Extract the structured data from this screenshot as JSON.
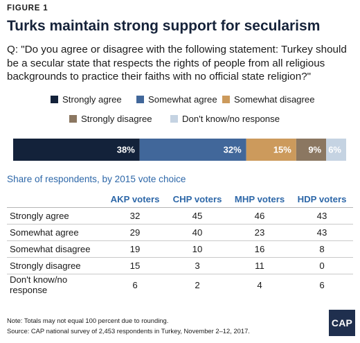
{
  "figure_label": "FIGURE 1",
  "title": "Turks maintain strong support for secularism",
  "question": "Q: \"Do you agree or disagree with the following statement: Turkey should be a secular state that respects the rights of people from all religious backgrounds to practice their faiths with no official state religion?\"",
  "chart_data": {
    "type": "bar",
    "orientation": "horizontal-stacked",
    "categories": [
      "Strongly agree",
      "Somewhat agree",
      "Somewhat disagree",
      "Strongly disagree",
      "Don't know/no response"
    ],
    "values": [
      38,
      32,
      15,
      9,
      6
    ],
    "labels": [
      "38%",
      "32%",
      "15%",
      "9%",
      "6%"
    ],
    "colors": [
      "#13223a",
      "#41679a",
      "#cc9a5c",
      "#8b7761",
      "#c5d3e2"
    ],
    "label_colors": [
      "#ffffff",
      "#ffffff",
      "#ffffff",
      "#ffffff",
      "#ffffff"
    ],
    "legend_position": "top"
  },
  "table": {
    "subtitle": "Share of respondents, by 2015 vote choice",
    "columns": [
      "AKP voters",
      "CHP voters",
      "MHP voters",
      "HDP voters"
    ],
    "rows": [
      {
        "label": "Strongly agree",
        "values": [
          "32",
          "45",
          "46",
          "43"
        ]
      },
      {
        "label": "Somewhat agree",
        "values": [
          "29",
          "40",
          "23",
          "43"
        ]
      },
      {
        "label": "Somewhat disagree",
        "values": [
          "19",
          "10",
          "16",
          "8"
        ]
      },
      {
        "label": "Strongly disagree",
        "values": [
          "15",
          "3",
          "11",
          "0"
        ]
      },
      {
        "label": "Don't know/no response",
        "values": [
          "6",
          "2",
          "4",
          "6"
        ]
      }
    ]
  },
  "note": "Note: Totals may not equal 100 percent due to rounding.",
  "source": "Source: CAP national survey of 2,453 respondents in Turkey, November 2–12, 2017.",
  "logo_text": "CAP"
}
